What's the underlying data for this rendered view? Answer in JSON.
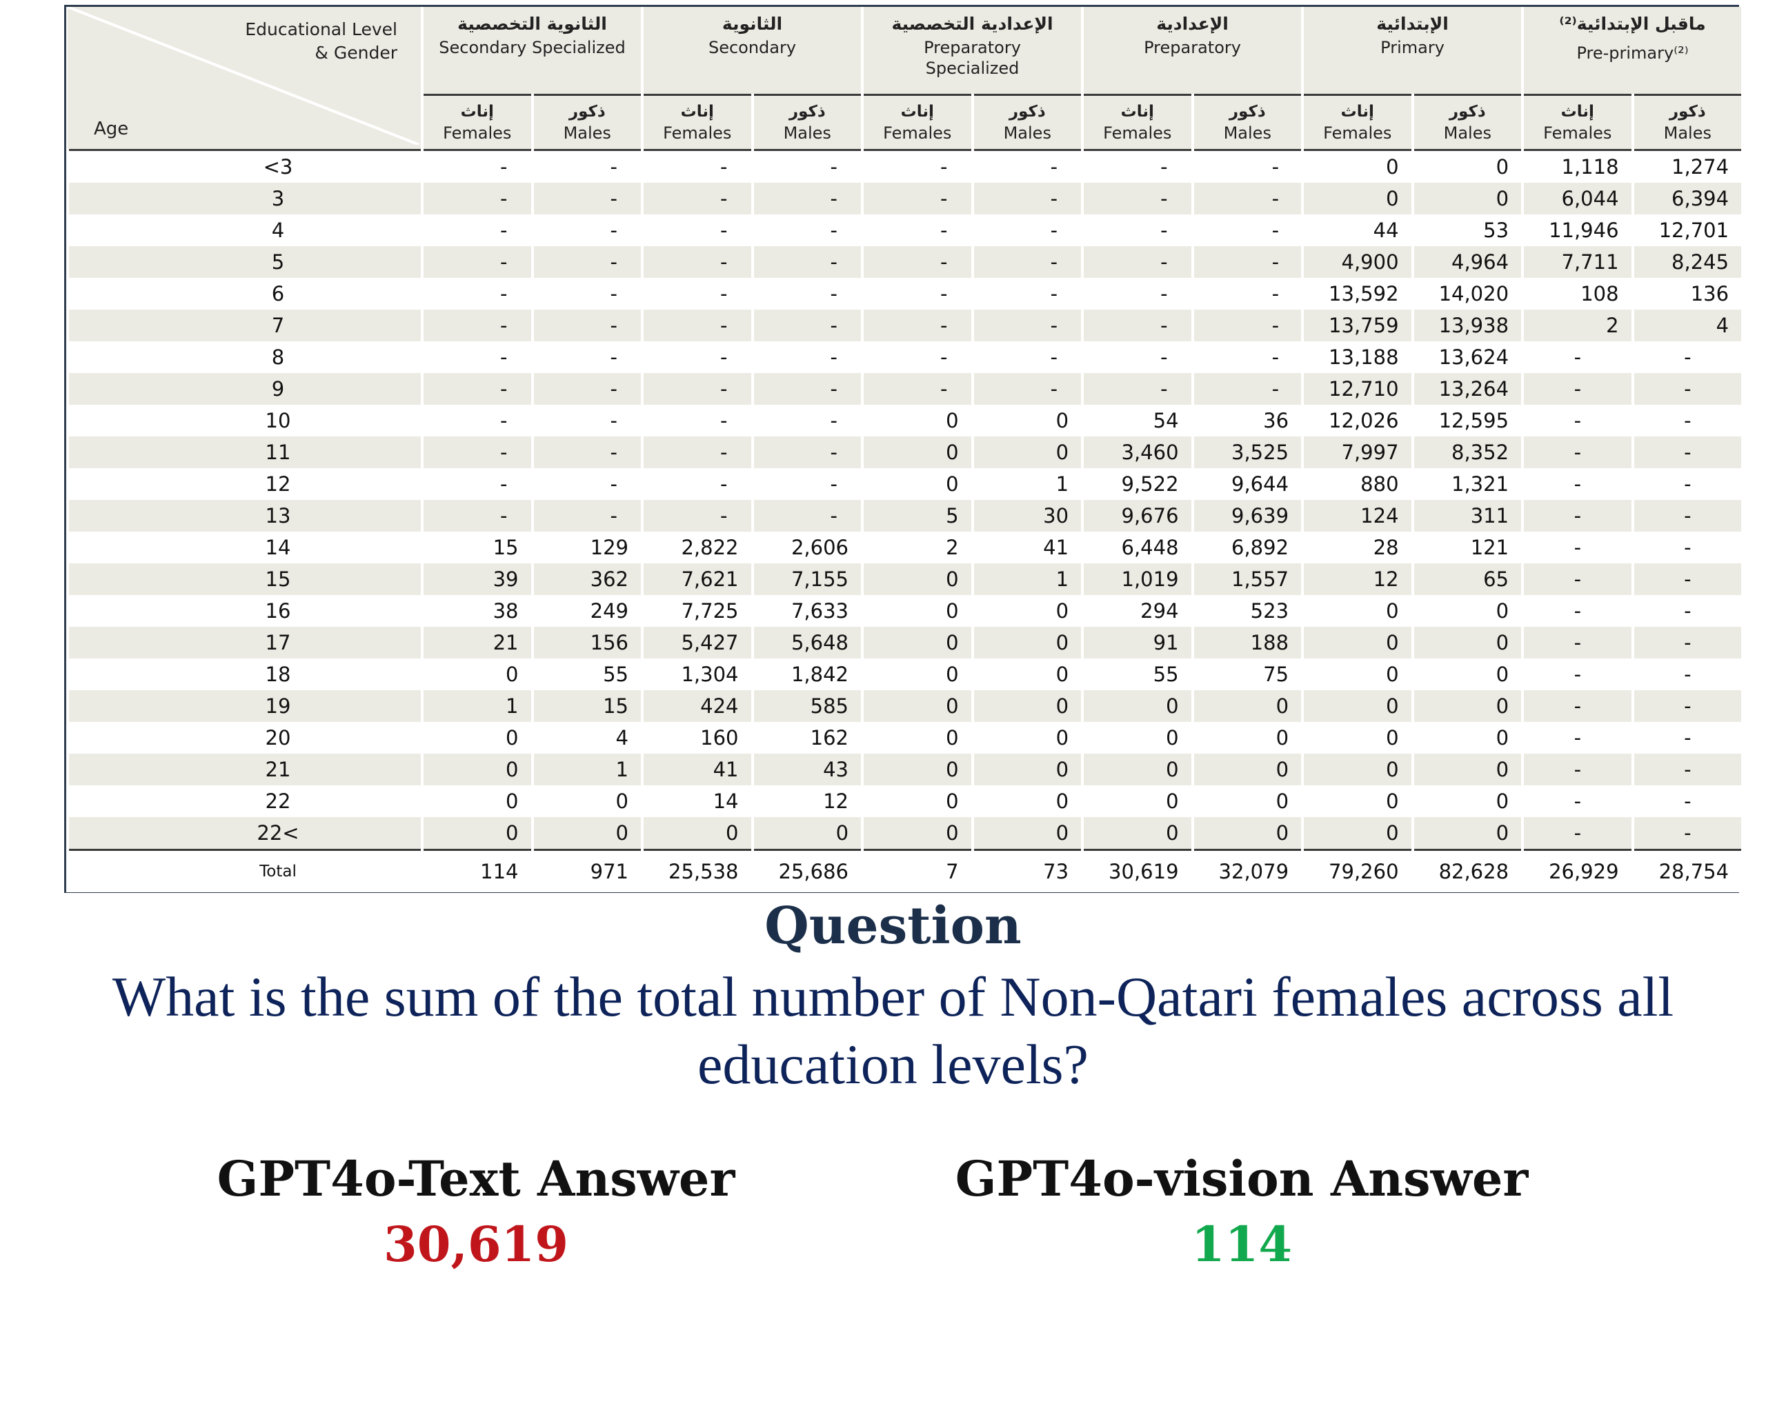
{
  "table": {
    "corner": {
      "level_label": "Educational Level",
      "gender_label": "& Gender",
      "age_label": "Age"
    },
    "groups": [
      {
        "ar": "الثانوية التخصصية",
        "en": "Secondary Specialized"
      },
      {
        "ar": "الثانوية",
        "en": "Secondary"
      },
      {
        "ar": "الإعدادية التخصصية",
        "en": "Preparatory",
        "en2": "Specialized"
      },
      {
        "ar": "الإعدادية",
        "en": "Preparatory"
      },
      {
        "ar": "الإبتدائية",
        "en": "Primary"
      },
      {
        "ar": "ماقبل الإبتدائية⁽²⁾",
        "en": "Pre-primary⁽²⁾"
      }
    ],
    "sub_headers": {
      "females_ar": "إناث",
      "females_en": "Females",
      "males_ar": "ذكور",
      "males_en": "Males"
    },
    "rows": [
      {
        "age": "<3",
        "values": [
          "-",
          "-",
          "-",
          "-",
          "-",
          "-",
          "-",
          "-",
          "0",
          "0",
          "1,118",
          "1,274"
        ]
      },
      {
        "age": "3",
        "values": [
          "-",
          "-",
          "-",
          "-",
          "-",
          "-",
          "-",
          "-",
          "0",
          "0",
          "6,044",
          "6,394"
        ]
      },
      {
        "age": "4",
        "values": [
          "-",
          "-",
          "-",
          "-",
          "-",
          "-",
          "-",
          "-",
          "44",
          "53",
          "11,946",
          "12,701"
        ]
      },
      {
        "age": "5",
        "values": [
          "-",
          "-",
          "-",
          "-",
          "-",
          "-",
          "-",
          "-",
          "4,900",
          "4,964",
          "7,711",
          "8,245"
        ]
      },
      {
        "age": "6",
        "values": [
          "-",
          "-",
          "-",
          "-",
          "-",
          "-",
          "-",
          "-",
          "13,592",
          "14,020",
          "108",
          "136"
        ]
      },
      {
        "age": "7",
        "values": [
          "-",
          "-",
          "-",
          "-",
          "-",
          "-",
          "-",
          "-",
          "13,759",
          "13,938",
          "2",
          "4"
        ]
      },
      {
        "age": "8",
        "values": [
          "-",
          "-",
          "-",
          "-",
          "-",
          "-",
          "-",
          "-",
          "13,188",
          "13,624",
          "-",
          "-"
        ]
      },
      {
        "age": "9",
        "values": [
          "-",
          "-",
          "-",
          "-",
          "-",
          "-",
          "-",
          "-",
          "12,710",
          "13,264",
          "-",
          "-"
        ]
      },
      {
        "age": "10",
        "values": [
          "-",
          "-",
          "-",
          "-",
          "0",
          "0",
          "54",
          "36",
          "12,026",
          "12,595",
          "-",
          "-"
        ]
      },
      {
        "age": "11",
        "values": [
          "-",
          "-",
          "-",
          "-",
          "0",
          "0",
          "3,460",
          "3,525",
          "7,997",
          "8,352",
          "-",
          "-"
        ]
      },
      {
        "age": "12",
        "values": [
          "-",
          "-",
          "-",
          "-",
          "0",
          "1",
          "9,522",
          "9,644",
          "880",
          "1,321",
          "-",
          "-"
        ]
      },
      {
        "age": "13",
        "values": [
          "-",
          "-",
          "-",
          "-",
          "5",
          "30",
          "9,676",
          "9,639",
          "124",
          "311",
          "-",
          "-"
        ]
      },
      {
        "age": "14",
        "values": [
          "15",
          "129",
          "2,822",
          "2,606",
          "2",
          "41",
          "6,448",
          "6,892",
          "28",
          "121",
          "-",
          "-"
        ]
      },
      {
        "age": "15",
        "values": [
          "39",
          "362",
          "7,621",
          "7,155",
          "0",
          "1",
          "1,019",
          "1,557",
          "12",
          "65",
          "-",
          "-"
        ]
      },
      {
        "age": "16",
        "values": [
          "38",
          "249",
          "7,725",
          "7,633",
          "0",
          "0",
          "294",
          "523",
          "0",
          "0",
          "-",
          "-"
        ]
      },
      {
        "age": "17",
        "values": [
          "21",
          "156",
          "5,427",
          "5,648",
          "0",
          "0",
          "91",
          "188",
          "0",
          "0",
          "-",
          "-"
        ]
      },
      {
        "age": "18",
        "values": [
          "0",
          "55",
          "1,304",
          "1,842",
          "0",
          "0",
          "55",
          "75",
          "0",
          "0",
          "-",
          "-"
        ]
      },
      {
        "age": "19",
        "values": [
          "1",
          "15",
          "424",
          "585",
          "0",
          "0",
          "0",
          "0",
          "0",
          "0",
          "-",
          "-"
        ]
      },
      {
        "age": "20",
        "values": [
          "0",
          "4",
          "160",
          "162",
          "0",
          "0",
          "0",
          "0",
          "0",
          "0",
          "-",
          "-"
        ]
      },
      {
        "age": "21",
        "values": [
          "0",
          "1",
          "41",
          "43",
          "0",
          "0",
          "0",
          "0",
          "0",
          "0",
          "-",
          "-"
        ]
      },
      {
        "age": "22",
        "values": [
          "0",
          "0",
          "14",
          "12",
          "0",
          "0",
          "0",
          "0",
          "0",
          "0",
          "-",
          "-"
        ]
      },
      {
        "age": "22<",
        "values": [
          "0",
          "0",
          "0",
          "0",
          "0",
          "0",
          "0",
          "0",
          "0",
          "0",
          "-",
          "-"
        ]
      }
    ],
    "total": {
      "label": "Total",
      "values": [
        "114",
        "971",
        "25,538",
        "25,686",
        "7",
        "73",
        "30,619",
        "32,079",
        "79,260",
        "82,628",
        "26,929",
        "28,754"
      ]
    }
  },
  "question": {
    "title": "Question",
    "text": "What is the sum of the total number of Non-Qatari females across all education levels?"
  },
  "answers": {
    "text_model": {
      "label": "GPT4o-Text Answer",
      "value": "30,619",
      "color": "#c0161b"
    },
    "vision_model": {
      "label": "GPT4o-vision Answer",
      "value": "114",
      "color": "#12a84d"
    }
  }
}
